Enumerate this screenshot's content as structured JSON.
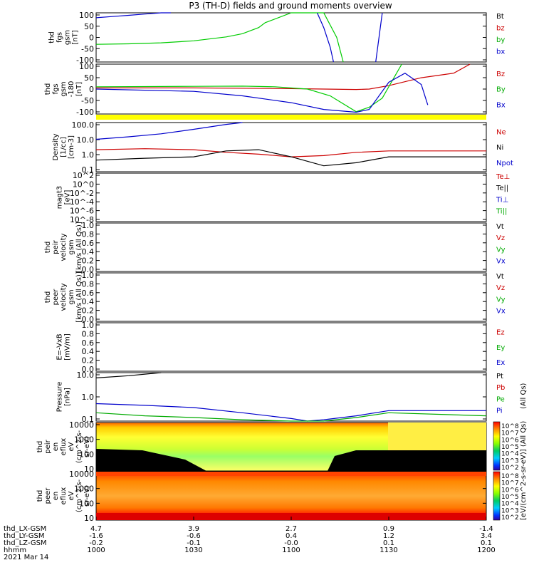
{
  "title": "P3 (TH-D) fields and ground moments overview",
  "chart_data": [
    {
      "id": "fgs",
      "type": "line",
      "ylabel": [
        "thd",
        "fgs",
        "gsm",
        "[nT]"
      ],
      "yticks": [
        "100",
        "50",
        "0",
        "-50",
        "-100"
      ],
      "ylim": [
        -100,
        100
      ],
      "legend": [
        {
          "label": "Bt",
          "color": "#000000"
        },
        {
          "label": "bz",
          "color": "#cc0000"
        },
        {
          "label": "by",
          "color": "#00aa00"
        },
        {
          "label": "bx",
          "color": "#0000cc"
        }
      ],
      "series": [
        {
          "name": "by",
          "color": "#00cc00",
          "x": [
            1000,
            1010,
            1020,
            1030,
            1040,
            1045,
            1050,
            1052,
            1100,
            1110,
            1114,
            1116
          ],
          "y": [
            -28,
            -26,
            -22,
            -14,
            2,
            15,
            40,
            60,
            100,
            100,
            0,
            -100
          ]
        },
        {
          "name": "bx",
          "color": "#0000cc",
          "x": [
            1000,
            1005,
            1010,
            1015,
            1020,
            1023
          ],
          "y": [
            80,
            85,
            90,
            95,
            100,
            100
          ]
        },
        {
          "name": "bx",
          "color": "#0000cc",
          "x": [
            1108,
            1110,
            1112,
            1113
          ],
          "y": [
            100,
            40,
            -40,
            -100
          ]
        },
        {
          "name": "bx",
          "color": "#0000cc",
          "x": [
            1126,
            1127,
            1128
          ],
          "y": [
            -100,
            0,
            100
          ]
        }
      ]
    },
    {
      "id": "fgs_gse",
      "type": "line",
      "ylabel": [
        "thd",
        "fgs",
        "gsm",
        "-180",
        "[nT]"
      ],
      "yticks": [
        "100",
        "50",
        "0",
        "-50",
        "-100"
      ],
      "ylim": [
        -120,
        100
      ],
      "legend": [
        {
          "label": "Bz",
          "color": "#cc0000"
        },
        {
          "label": "By",
          "color": "#00aa00"
        },
        {
          "label": "Bx",
          "color": "#0000cc"
        }
      ],
      "series": [
        {
          "name": "Bz",
          "color": "#cc0000",
          "x": [
            1000,
            1030,
            1100,
            1110,
            1120,
            1124,
            1130,
            1140,
            1150,
            1155
          ],
          "y": [
            -5,
            -5,
            -8,
            -10,
            -12,
            -10,
            5,
            40,
            60,
            100
          ]
        },
        {
          "name": "By",
          "color": "#00cc00",
          "x": [
            1000,
            1030,
            1045,
            1055,
            1105,
            1112,
            1120,
            1124,
            1128,
            1132,
            1134
          ],
          "y": [
            0,
            2,
            3,
            0,
            -10,
            -40,
            -110,
            -90,
            -50,
            50,
            100
          ]
        },
        {
          "name": "Bx",
          "color": "#0000cc",
          "x": [
            1000,
            1030,
            1045,
            1100,
            1110,
            1120,
            1124,
            1130,
            1135,
            1140,
            1142
          ],
          "y": [
            -10,
            -20,
            -40,
            -70,
            -100,
            -112,
            -100,
            20,
            60,
            10,
            -80
          ]
        }
      ],
      "bar_color": "#ffff00"
    },
    {
      "id": "density",
      "type": "line",
      "yscale": "log",
      "ylabel": [
        "Density",
        "[1/cc]",
        "[cm-3]"
      ],
      "yticks": [
        "100.0",
        "10.0",
        "1.0",
        "0.1"
      ],
      "ylim": [
        0.1,
        200
      ],
      "legend": [
        {
          "label": "Ne",
          "color": "#cc0000"
        },
        {
          "label": "Ni",
          "color": "#000000"
        },
        {
          "label": "Npot",
          "color": "#0000cc"
        }
      ],
      "series": [
        {
          "name": "Npot",
          "color": "#0000cc",
          "x": [
            1000,
            1010,
            1020,
            1030,
            1040,
            1045
          ],
          "y": [
            15,
            22,
            35,
            70,
            150,
            200
          ]
        },
        {
          "name": "Ne",
          "color": "#cc0000",
          "x": [
            1000,
            1015,
            1030,
            1040,
            1050,
            1100,
            1110,
            1120,
            1130,
            1145,
            1200
          ],
          "y": [
            3,
            3.5,
            3,
            2,
            1.5,
            1,
            1.2,
            2,
            2.5,
            2.5,
            2.5
          ]
        },
        {
          "name": "Ni",
          "color": "#000000",
          "x": [
            1000,
            1015,
            1030,
            1040,
            1050,
            1100,
            1110,
            1120,
            1130,
            1200
          ],
          "y": [
            0.6,
            0.8,
            1,
            2.5,
            3,
            1,
            0.25,
            0.4,
            1,
            1
          ]
        }
      ]
    },
    {
      "id": "temp",
      "type": "line",
      "ylabel": [
        "magt3",
        "[eV]"
      ],
      "yticks": [
        "10^2",
        "10^0",
        "10^-2",
        "10^-4",
        "10^-6",
        "10^-8"
      ],
      "legend": [
        {
          "label": "Te⊥",
          "color": "#cc0000"
        },
        {
          "label": "Te||",
          "color": "#000000"
        },
        {
          "label": "Ti⊥",
          "color": "#0000cc"
        },
        {
          "label": "Ti||",
          "color": "#00aa00"
        }
      ]
    },
    {
      "id": "peir_v",
      "type": "line",
      "ylabel": [
        "thd",
        "peir",
        "velocity",
        "gsm",
        "[km/s (All Qs)]"
      ],
      "yticks": [
        "1.0",
        "0.8",
        "0.6",
        "0.4",
        "0.2",
        "0.0"
      ],
      "legend": [
        {
          "label": "Vt",
          "color": "#000000"
        },
        {
          "label": "Vz",
          "color": "#cc0000"
        },
        {
          "label": "Vy",
          "color": "#00aa00"
        },
        {
          "label": "Vx",
          "color": "#0000cc"
        }
      ]
    },
    {
      "id": "peer_v",
      "type": "line",
      "ylabel": [
        "thd",
        "peer",
        "velocity",
        "gsm",
        "[km/s (All Qs)]"
      ],
      "yticks": [
        "1.0",
        "0.8",
        "0.6",
        "0.4",
        "0.2",
        "0.0"
      ],
      "legend": [
        {
          "label": "Vt",
          "color": "#000000"
        },
        {
          "label": "Vz",
          "color": "#cc0000"
        },
        {
          "label": "Vy",
          "color": "#00aa00"
        },
        {
          "label": "Vx",
          "color": "#0000cc"
        }
      ]
    },
    {
      "id": "efield",
      "type": "line",
      "ylabel": [
        "E=-VxB",
        "[mV/m]"
      ],
      "yticks": [
        "1.0",
        "0.8",
        "0.6",
        "0.4",
        "0.2",
        "0.0"
      ],
      "legend": [
        {
          "label": "Ez",
          "color": "#cc0000"
        },
        {
          "label": "Ey",
          "color": "#00aa00"
        },
        {
          "label": "Ex",
          "color": "#0000cc"
        }
      ]
    },
    {
      "id": "pressure",
      "type": "line",
      "yscale": "log",
      "ylabel": [
        "Pressure",
        "[nPa]"
      ],
      "yticks": [
        "10.0",
        "1.0",
        "0.1"
      ],
      "ylim": [
        0.05,
        30
      ],
      "legend": [
        {
          "label": "Pt",
          "color": "#000000"
        },
        {
          "label": "Pb",
          "color": "#cc0000"
        },
        {
          "label": "Pe",
          "color": "#00aa00"
        },
        {
          "label": "Pi",
          "color": "#0000cc"
        }
      ],
      "side_label": "(All Qs)",
      "series": [
        {
          "name": "Pt",
          "color": "#000000",
          "x": [
            1000,
            1010,
            1020
          ],
          "y": [
            15,
            20,
            30
          ]
        },
        {
          "name": "Pi",
          "color": "#0000cc",
          "x": [
            1000,
            1015,
            1030,
            1045,
            1100,
            1105,
            1110,
            1120,
            1130,
            1200
          ],
          "y": [
            0.5,
            0.4,
            0.3,
            0.15,
            0.07,
            0.05,
            0.06,
            0.1,
            0.2,
            0.2
          ]
        },
        {
          "name": "Pe",
          "color": "#00aa00",
          "x": [
            1000,
            1015,
            1030,
            1045,
            1100,
            1105,
            1110,
            1120,
            1130,
            1200
          ],
          "y": [
            0.15,
            0.1,
            0.08,
            0.06,
            0.05,
            0.04,
            0.05,
            0.08,
            0.15,
            0.1
          ]
        }
      ]
    },
    {
      "id": "peir_eflux",
      "type": "heatmap",
      "ylabel": [
        "thd",
        "peir",
        "en",
        "eflux",
        "eV",
        "(cm^2-s-",
        "sr-eV)"
      ],
      "yticks": [
        "10000",
        "1000",
        "100",
        "10"
      ]
    },
    {
      "id": "peer_eflux",
      "type": "heatmap",
      "ylabel": [
        "thd",
        "peer",
        "en",
        "eflux",
        "eV",
        "(cm^2-s-",
        "sr-eV)"
      ],
      "yticks": [
        "10000",
        "1000",
        "100",
        "10"
      ]
    }
  ],
  "colorbar": {
    "label": "[eV/(cm^2-s-sr-eV)] (All Qs)",
    "ticks": [
      "10^8",
      "10^7",
      "10^6",
      "10^5",
      "10^4",
      "10^3",
      "10^2"
    ]
  },
  "x_axis": {
    "ticks_x": [
      1000,
      1030,
      1100,
      1130,
      1200
    ],
    "rows": [
      {
        "label": "thd_LX-GSM",
        "values": [
          "4.7",
          "3.9",
          "2.7",
          "0.9",
          "-1.4"
        ]
      },
      {
        "label": "thd_LY-GSM",
        "values": [
          "-1.6",
          "-0.6",
          "0.4",
          "1.2",
          "3.4"
        ]
      },
      {
        "label": "thd_LZ-GSM",
        "values": [
          "-0.2",
          "-0.1",
          "-0.0",
          "0.1",
          "0.1"
        ]
      },
      {
        "label": "hhmm",
        "values": [
          "1000",
          "1030",
          "1100",
          "1130",
          "1200"
        ]
      }
    ],
    "date": "2021 Mar 14"
  }
}
